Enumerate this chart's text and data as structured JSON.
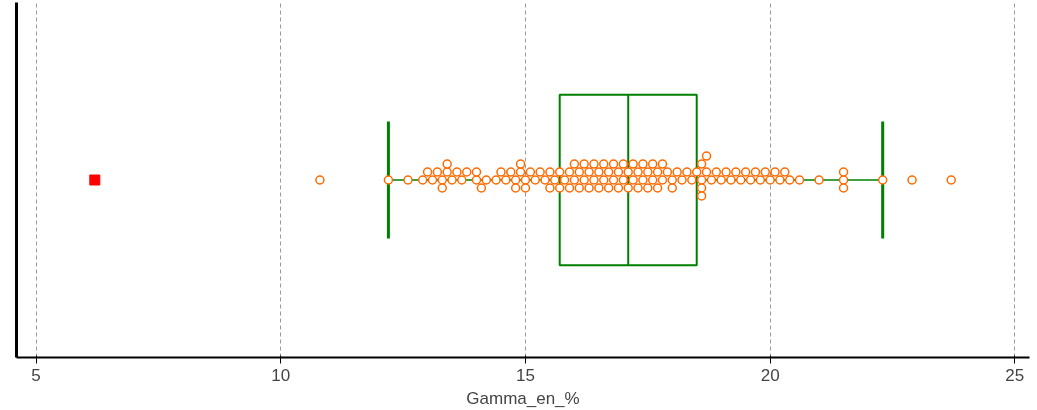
{
  "chart_data": {
    "type": "box",
    "orientation": "horizontal",
    "categories": [
      null
    ],
    "xlabel": "Gamma_en_%",
    "xlim": [
      4.6,
      25.3
    ],
    "xticks": [
      5,
      10,
      15,
      20,
      25
    ],
    "grid": "x",
    "tick_labels": "x",
    "series": [
      {
        "type": "box",
        "color": "#008000",
        "boxes": [
          {
            "low": 12.2,
            "q1": 15.7,
            "median": 17.1,
            "q3": 18.5,
            "high": 22.3
          }
        ]
      },
      {
        "type": "scatter",
        "color": "#ff0000",
        "marker": "square",
        "x": [
          null
        ],
        "values": [
          6.2
        ]
      },
      {
        "type": "scatter",
        "color": "#ff6a00",
        "marker": "circle",
        "x": [
          null,
          null,
          null,
          null,
          null,
          null,
          null,
          null,
          null,
          null,
          null,
          null,
          null,
          null,
          null,
          null,
          null,
          null,
          null,
          null,
          null,
          null,
          null,
          null,
          null,
          null,
          null,
          null,
          null,
          null,
          null,
          null,
          null,
          null,
          null,
          null,
          null,
          null,
          null,
          null,
          null,
          null,
          null,
          null,
          null,
          null,
          null,
          null,
          null,
          null,
          null,
          null,
          null,
          null,
          null,
          null,
          null,
          null,
          null,
          null,
          null,
          null,
          null,
          null,
          null,
          null,
          null,
          null,
          null,
          null,
          null,
          null,
          null,
          null,
          null,
          null,
          null,
          null,
          null,
          null,
          null,
          null,
          null,
          null,
          null,
          null,
          null,
          null,
          null,
          null,
          null,
          null,
          null,
          null,
          null,
          null,
          null,
          null,
          null,
          null,
          null,
          null,
          null,
          null,
          null,
          null,
          null,
          null,
          null,
          null,
          null,
          null,
          null,
          null,
          null,
          null,
          null,
          null
        ],
        "values": [
          10.8,
          12.2,
          12.6,
          12.9,
          13.0,
          13.1,
          13.2,
          13.3,
          13.3,
          13.4,
          13.4,
          13.5,
          13.6,
          13.7,
          13.8,
          14.0,
          14.0,
          14.1,
          14.2,
          14.4,
          14.5,
          14.6,
          14.7,
          14.8,
          14.8,
          14.9,
          14.9,
          15.0,
          15.0,
          15.1,
          15.2,
          15.3,
          15.4,
          15.5,
          15.5,
          15.6,
          15.7,
          15.7,
          15.8,
          15.9,
          15.9,
          16.0,
          16.0,
          16.1,
          16.1,
          16.2,
          16.2,
          16.3,
          16.3,
          16.4,
          16.4,
          16.5,
          16.5,
          16.6,
          16.6,
          16.7,
          16.7,
          16.8,
          16.8,
          16.9,
          16.9,
          17.0,
          17.0,
          17.1,
          17.1,
          17.2,
          17.2,
          17.3,
          17.3,
          17.4,
          17.4,
          17.5,
          17.5,
          17.6,
          17.6,
          17.7,
          17.7,
          17.8,
          17.8,
          17.9,
          18.0,
          18.0,
          18.1,
          18.2,
          18.3,
          18.4,
          18.5,
          18.6,
          18.6,
          18.6,
          18.6,
          18.7,
          18.7,
          18.8,
          18.9,
          19.0,
          19.1,
          19.2,
          19.3,
          19.4,
          19.5,
          19.6,
          19.7,
          19.8,
          19.9,
          20.0,
          20.1,
          20.2,
          20.3,
          20.4,
          20.6,
          21.0,
          21.5,
          21.5,
          21.5,
          22.3,
          22.9,
          23.7
        ]
      }
    ]
  }
}
